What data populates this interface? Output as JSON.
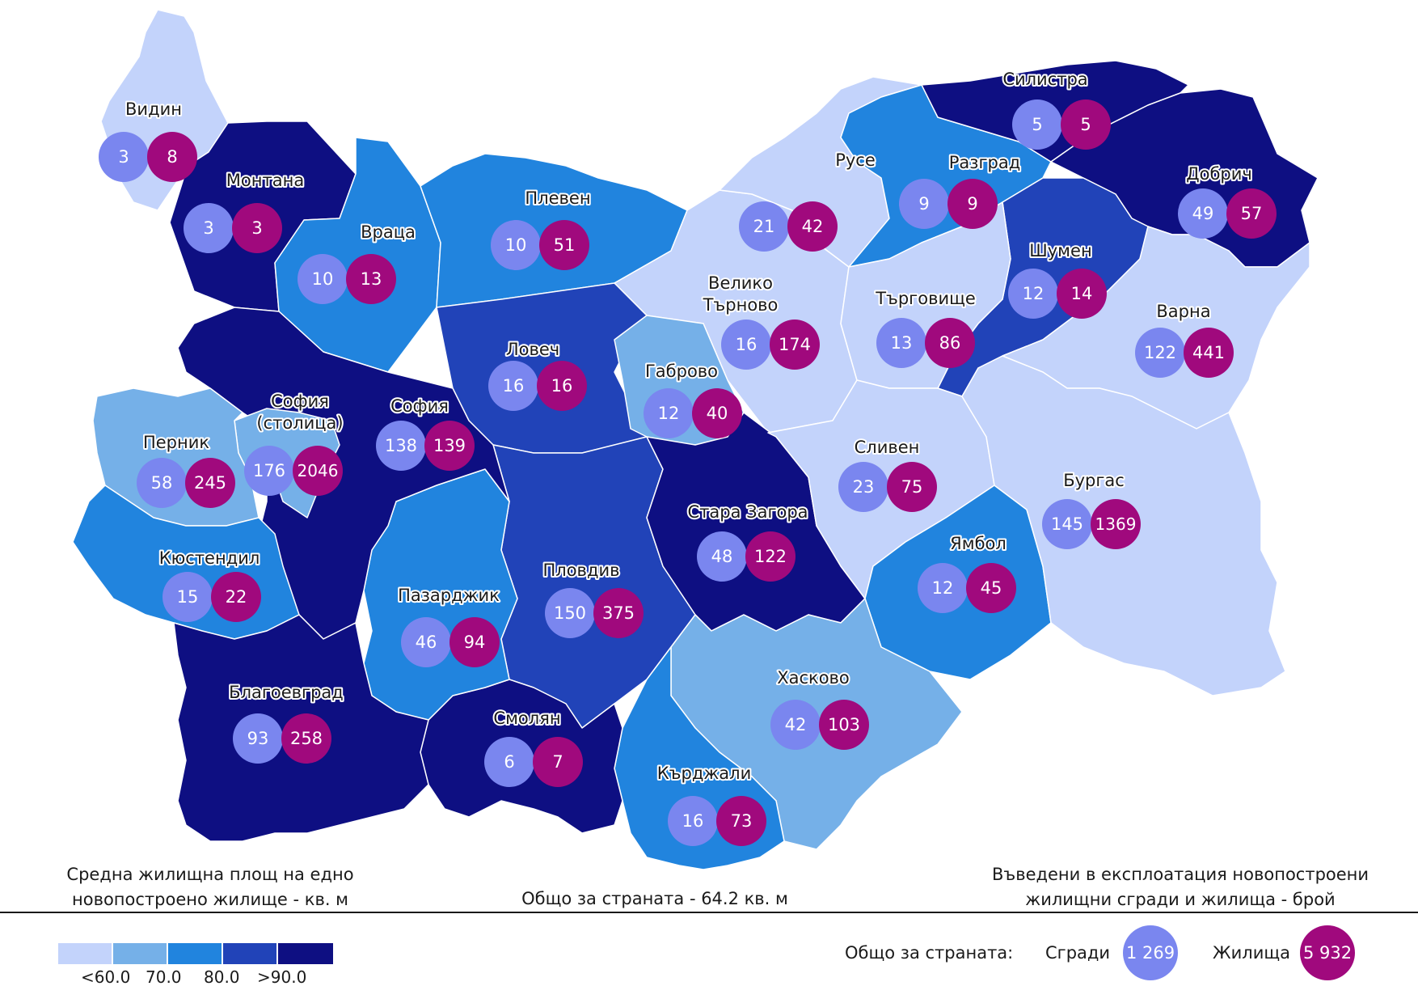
{
  "colors": {
    "class1": "#c3d3fb",
    "class2": "#75b0e8",
    "class3": "#2184de",
    "class4": "#2143b8",
    "class5": "#0e0f82",
    "buildings": "#7a86ef",
    "dwellings": "#a0097d"
  },
  "regions": [
    {
      "name": "Видин",
      "buildings": "3",
      "dwellings": "8"
    },
    {
      "name": "Монтана",
      "buildings": "3",
      "dwellings": "3"
    },
    {
      "name": "Враца",
      "buildings": "10",
      "dwellings": "13"
    },
    {
      "name": "Плевен",
      "buildings": "10",
      "dwellings": "51"
    },
    {
      "name": "Русе",
      "buildings": "21",
      "dwellings": "42"
    },
    {
      "name": "Разград",
      "buildings": "9",
      "dwellings": "9"
    },
    {
      "name": "Силистра",
      "buildings": "5",
      "dwellings": "5"
    },
    {
      "name": "Добрич",
      "buildings": "49",
      "dwellings": "57"
    },
    {
      "name": "Шумен",
      "buildings": "12",
      "dwellings": "14"
    },
    {
      "name": "Варна",
      "buildings": "122",
      "dwellings": "441"
    },
    {
      "name": "Велико Търново",
      "line1": "Велико",
      "line2": "Търново",
      "buildings": "16",
      "dwellings": "174"
    },
    {
      "name": "Търговище",
      "buildings": "13",
      "dwellings": "86"
    },
    {
      "name": "Ловеч",
      "buildings": "16",
      "dwellings": "16"
    },
    {
      "name": "Габрово",
      "buildings": "12",
      "dwellings": "40"
    },
    {
      "name": "София",
      "buildings": "138",
      "dwellings": "139"
    },
    {
      "name": "София (столица)",
      "line1": "София",
      "line2": "(столица)",
      "buildings": "176",
      "dwellings": "2046"
    },
    {
      "name": "Перник",
      "buildings": "58",
      "dwellings": "245"
    },
    {
      "name": "Кюстендил",
      "buildings": "15",
      "dwellings": "22"
    },
    {
      "name": "Пазарджик",
      "buildings": "46",
      "dwellings": "94"
    },
    {
      "name": "Пловдив",
      "buildings": "150",
      "dwellings": "375"
    },
    {
      "name": "Стара Загора",
      "buildings": "48",
      "dwellings": "122"
    },
    {
      "name": "Сливен",
      "buildings": "23",
      "dwellings": "75"
    },
    {
      "name": "Бургас",
      "buildings": "145",
      "dwellings": "1369"
    },
    {
      "name": "Ямбол",
      "buildings": "12",
      "dwellings": "45"
    },
    {
      "name": "Хасково",
      "buildings": "42",
      "dwellings": "103"
    },
    {
      "name": "Благоевград",
      "buildings": "93",
      "dwellings": "258"
    },
    {
      "name": "Смолян",
      "buildings": "6",
      "dwellings": "7"
    },
    {
      "name": "Кърджали",
      "buildings": "16",
      "dwellings": "73"
    }
  ],
  "legend": {
    "title_line1": "Средна жилищна площ на едно",
    "title_line2": "новопостроено жилище - кв. м",
    "ticks": [
      "<60.0",
      "70.0",
      "80.0",
      ">90.0"
    ]
  },
  "country_total": "Общо за страната - 64.2 кв. м",
  "right_title_line1": "Въведени в експлоатация новопостроени",
  "right_title_line2": "жилищни сгради и жилища - брой",
  "totals": {
    "label": "Общо за страната:",
    "buildings_label": "Сгради",
    "buildings_value": "1 269",
    "dwellings_label": "Жилища",
    "dwellings_value": "5 932"
  }
}
